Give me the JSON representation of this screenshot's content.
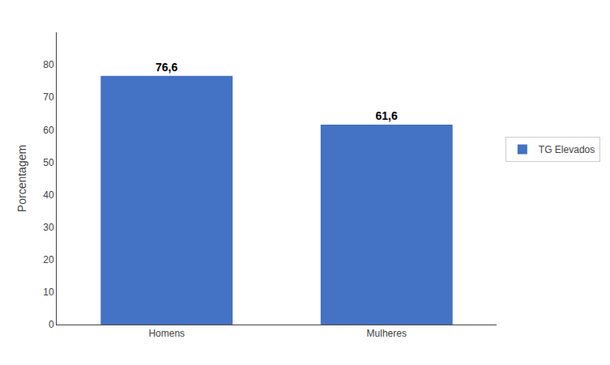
{
  "chart_data": {
    "type": "bar",
    "categories": [
      "Homens",
      "Mulheres"
    ],
    "series": [
      {
        "name": "TG Elevados",
        "color": "#4472C4",
        "values": [
          76.6,
          61.6
        ],
        "value_labels": [
          "76,6",
          "61,6"
        ]
      }
    ],
    "ylabel": "Porcentagem",
    "ylim": [
      0,
      90
    ],
    "yticks": [
      0,
      10,
      20,
      30,
      40,
      50,
      60,
      70,
      80
    ],
    "data_labels": true,
    "legend": "right",
    "grid": false
  }
}
